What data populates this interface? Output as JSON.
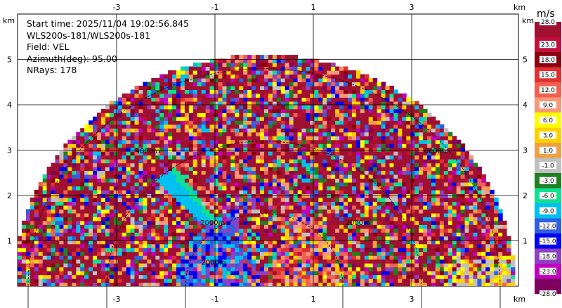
{
  "info": {
    "start_time": "Start time: 2025/11/04 19:02:56.845",
    "instrument": "WLS200s-181/WLS200s-181",
    "field": "Field: VEL",
    "azimuth": "Azimuth(deg): 95.00",
    "nrays": "NRays: 178"
  },
  "chart_data": {
    "type": "heatmap",
    "projection": "rhi-polar",
    "xlabel": "km",
    "ylabel": "km",
    "xlim": [
      -4.9,
      5.4
    ],
    "ylim": [
      0,
      5.5
    ],
    "x_ticks": [
      "-3",
      "-1",
      "1",
      "3"
    ],
    "x_tick_values": [
      -3,
      -1,
      1,
      3
    ],
    "y_ticks": [
      "1",
      "2",
      "3",
      "4",
      "5"
    ],
    "y_tick_values": [
      1,
      2,
      3,
      4,
      5
    ],
    "range_rings_m": [
      2000,
      4000,
      6000
    ],
    "range_ring_labels": [
      "2000m",
      "4000m",
      "6000m"
    ],
    "max_range_km": 5.1,
    "colorbar": {
      "unit": "m/s",
      "labels": [
        "28.0",
        "23.0",
        "18.0",
        "15.0",
        "12.0",
        "9.0",
        "6.0",
        "3.0",
        "1.0",
        "-1.0",
        "-3.0",
        "-6.0",
        "-9.0",
        "-12.0",
        "-15.0",
        "-18.0",
        "-23.0",
        "-28.0"
      ],
      "colors": [
        "#a01030",
        "#c0103a",
        "#8b0010",
        "#e03030",
        "#f06050",
        "#f89878",
        "#ffff00",
        "#ffd000",
        "#f0a040",
        "#c0c0c0",
        "#208020",
        "#10e090",
        "#00c0f0",
        "#3060e0",
        "#0000f0",
        "#9040c0",
        "#c000c0",
        "#800060"
      ]
    },
    "grid": true
  }
}
